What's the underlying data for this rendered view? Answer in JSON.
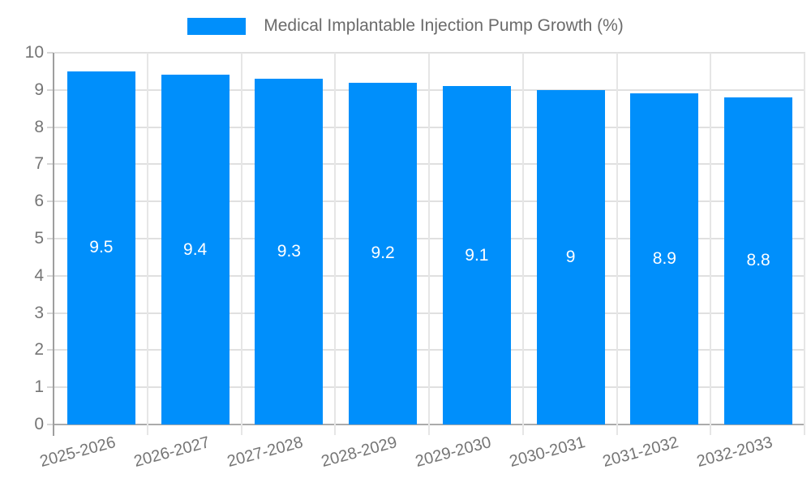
{
  "legend": {
    "label": "Medical Implantable Injection Pump Growth (%)"
  },
  "chart_data": {
    "type": "bar",
    "title": "Medical Implantable Injection Pump Growth (%)",
    "categories": [
      "2025-2026",
      "2026-2027",
      "2027-2028",
      "2028-2029",
      "2029-2030",
      "2030-2031",
      "2031-2032",
      "2032-2033"
    ],
    "values": [
      9.5,
      9.4,
      9.3,
      9.2,
      9.1,
      9,
      8.9,
      8.8
    ],
    "value_labels": [
      "9.5",
      "9.4",
      "9.3",
      "9.2",
      "9.1",
      "9",
      "8.9",
      "8.8"
    ],
    "xlabel": "",
    "ylabel": "",
    "ylim": [
      0,
      10
    ],
    "yticks": [
      0,
      1,
      2,
      3,
      4,
      5,
      6,
      7,
      8,
      9,
      10
    ],
    "grid": true,
    "legend_position": "top",
    "colors": {
      "bar": "#008FFB",
      "value_label": "#FFFFFF",
      "grid_line": "#E0E0E0",
      "axis_line": "#ABABAB",
      "tick_label": "#757575",
      "legend_label": "#6B6B6B",
      "background": "#FFFFFF"
    }
  }
}
